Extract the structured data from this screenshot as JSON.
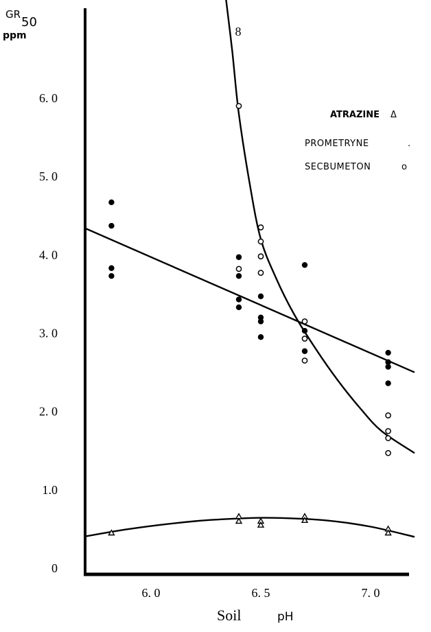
{
  "chart_data": {
    "type": "scatter",
    "title": "",
    "ylabel": {
      "main": "GR",
      "sub": "50",
      "unit": "ppm"
    },
    "xlabel": {
      "main": "Soil",
      "unit": "pH"
    },
    "xlim": [
      5.7,
      7.2
    ],
    "ylim": [
      0,
      7.2
    ],
    "y_ticks": [
      {
        "value": 0,
        "label": "0"
      },
      {
        "value": 1.0,
        "label": "1.0"
      },
      {
        "value": 2.0,
        "label": "2. 0"
      },
      {
        "value": 3.0,
        "label": "3. 0"
      },
      {
        "value": 4.0,
        "label": "4. 0"
      },
      {
        "value": 5.0,
        "label": "5. 0"
      },
      {
        "value": 6.0,
        "label": "6. 0"
      }
    ],
    "x_ticks": [
      {
        "value": 6.0,
        "label": "6. 0"
      },
      {
        "value": 6.5,
        "label": "6. 5"
      },
      {
        "value": 7.0,
        "label": "7. 0"
      }
    ],
    "annotations": [
      {
        "text": "8",
        "x": 6.4,
        "y": 6.85
      }
    ],
    "grid": false,
    "legend_position": "top-right",
    "series": [
      {
        "name": "ATRAZINE",
        "legend_label": "ATRAZINE",
        "legend_symbol": "Δ",
        "marker": "triangle",
        "points": [
          [
            5.82,
            0.45
          ],
          [
            6.4,
            0.66
          ],
          [
            6.4,
            0.6
          ],
          [
            6.5,
            0.6
          ],
          [
            6.5,
            0.55
          ],
          [
            6.7,
            0.66
          ],
          [
            6.7,
            0.61
          ],
          [
            7.08,
            0.5
          ],
          [
            7.08,
            0.45
          ]
        ],
        "curve": [
          [
            5.65,
            0.38
          ],
          [
            5.9,
            0.5
          ],
          [
            6.2,
            0.6
          ],
          [
            6.45,
            0.64
          ],
          [
            6.6,
            0.64
          ],
          [
            6.8,
            0.61
          ],
          [
            7.0,
            0.53
          ],
          [
            7.2,
            0.4
          ]
        ]
      },
      {
        "name": "PROMETRYNE",
        "legend_label": "PROMETRYNE",
        "legend_symbol": ".",
        "marker": "filled-circle",
        "points": [
          [
            5.82,
            4.67
          ],
          [
            5.82,
            4.37
          ],
          [
            5.82,
            3.83
          ],
          [
            5.82,
            3.73
          ],
          [
            6.4,
            3.97
          ],
          [
            6.4,
            3.73
          ],
          [
            6.4,
            3.43
          ],
          [
            6.4,
            3.33
          ],
          [
            6.5,
            3.47
          ],
          [
            6.5,
            3.2
          ],
          [
            6.5,
            3.15
          ],
          [
            6.5,
            2.95
          ],
          [
            6.7,
            3.87
          ],
          [
            6.7,
            3.03
          ],
          [
            6.7,
            2.77
          ],
          [
            7.08,
            2.75
          ],
          [
            7.08,
            2.63
          ],
          [
            7.08,
            2.57
          ],
          [
            7.08,
            2.36
          ]
        ],
        "curve": [
          [
            5.65,
            4.4
          ],
          [
            7.2,
            2.5
          ]
        ]
      },
      {
        "name": "SECBUMETON",
        "legend_label": "SECBUMETON",
        "legend_symbol": "o",
        "marker": "open-circle",
        "points": [
          [
            6.4,
            5.9
          ],
          [
            6.4,
            3.82
          ],
          [
            6.5,
            4.35
          ],
          [
            6.5,
            4.17
          ],
          [
            6.5,
            3.98
          ],
          [
            6.5,
            3.77
          ],
          [
            6.7,
            3.15
          ],
          [
            6.7,
            2.93
          ],
          [
            6.7,
            2.65
          ],
          [
            7.08,
            1.95
          ],
          [
            7.08,
            1.75
          ],
          [
            7.08,
            1.66
          ],
          [
            7.08,
            1.47
          ]
        ],
        "curve": [
          [
            6.34,
            7.3
          ],
          [
            6.37,
            6.6
          ],
          [
            6.4,
            5.8
          ],
          [
            6.45,
            4.9
          ],
          [
            6.5,
            4.2
          ],
          [
            6.57,
            3.7
          ],
          [
            6.65,
            3.25
          ],
          [
            6.75,
            2.8
          ],
          [
            6.85,
            2.4
          ],
          [
            6.95,
            2.05
          ],
          [
            7.05,
            1.75
          ],
          [
            7.2,
            1.47
          ]
        ]
      }
    ]
  }
}
